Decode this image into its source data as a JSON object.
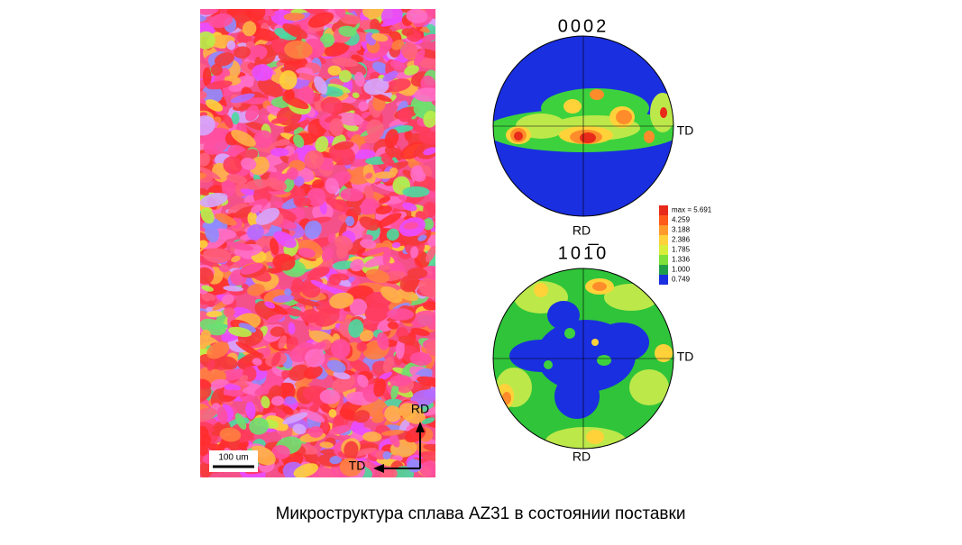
{
  "figure": {
    "map": {
      "scale_bar": "100 um",
      "axis_vertical": "RD",
      "axis_horizontal": "TD"
    },
    "pole_figure_1": {
      "title": "0002",
      "axis_right": "TD",
      "axis_bottom": "RD"
    },
    "pole_figure_2": {
      "title": "101̅0",
      "axis_right": "TD",
      "axis_bottom": "RD"
    },
    "legend": {
      "labels": [
        "max = 5.691",
        "4.259",
        "3.188",
        "2.386",
        "1.785",
        "1.336",
        "1.000",
        "0.749"
      ]
    },
    "caption": "Микроструктура сплава AZ31 в состоянии поставки"
  }
}
